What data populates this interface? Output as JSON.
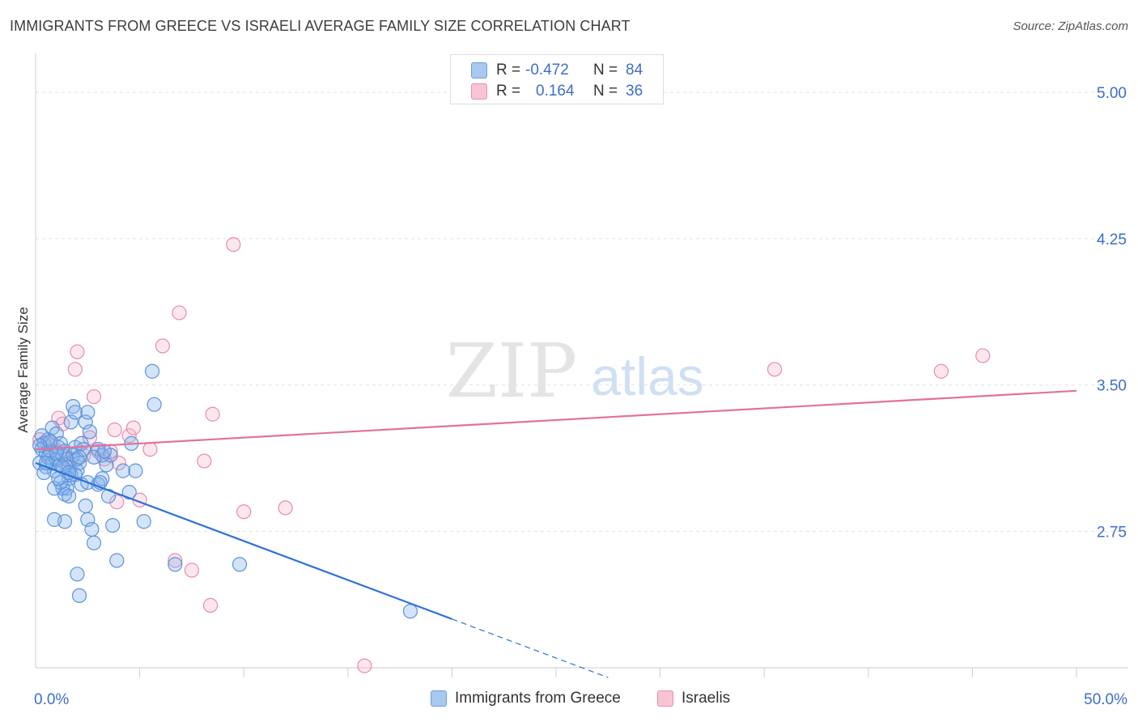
{
  "title": "IMMIGRANTS FROM GREECE VS ISRAELI AVERAGE FAMILY SIZE CORRELATION CHART",
  "source": "Source: ZipAtlas.com",
  "watermark": {
    "zip": "ZIP",
    "atlas": "atlas"
  },
  "stats": [
    {
      "r_label": "R =",
      "r_value": "-0.472",
      "n_label": "N =",
      "n_value": "84",
      "color": "#a9c8f0",
      "border": "#6d9fe0"
    },
    {
      "r_label": "R =",
      "r_value": "0.164",
      "n_label": "N =",
      "n_value": "36",
      "color": "#f8c4d4",
      "border": "#eb8fab"
    }
  ],
  "colors": {
    "blue_fill": "rgba(132,178,236,0.35)",
    "blue_stroke": "#5b93dd",
    "blue_line": "#2b72d6",
    "pink_fill": "rgba(246,176,198,0.30)",
    "pink_stroke": "#e98ca9",
    "pink_line": "#e2729a",
    "tick_text": "#3d6ec9",
    "grid": "#e3e3e3"
  },
  "chart_data": {
    "type": "scatter",
    "xlabel": "",
    "ylabel": "Average Family Size",
    "xlim": [
      0,
      50
    ],
    "ylim": [
      2.05,
      5.15
    ],
    "x_tick_labels": [
      {
        "value": 0,
        "label": "0.0%"
      },
      {
        "value": 50,
        "label": "50.0%"
      }
    ],
    "y_ticks": [
      {
        "value": 5.0,
        "label": "5.00"
      },
      {
        "value": 4.25,
        "label": "4.25"
      },
      {
        "value": 3.5,
        "label": "3.50"
      },
      {
        "value": 2.75,
        "label": "2.75"
      }
    ],
    "legend": [
      "Immigrants from Greece",
      "Israelis"
    ],
    "series": [
      {
        "name": "Immigrants from Greece",
        "points": [
          [
            0.3,
            3.24
          ],
          [
            0.4,
            3.2
          ],
          [
            0.3,
            3.17
          ],
          [
            0.5,
            3.15
          ],
          [
            0.2,
            3.1
          ],
          [
            0.5,
            3.08
          ],
          [
            0.6,
            3.13
          ],
          [
            0.7,
            3.16
          ],
          [
            0.8,
            3.1
          ],
          [
            0.9,
            3.06
          ],
          [
            1.0,
            3.12
          ],
          [
            1.1,
            3.18
          ],
          [
            1.2,
            3.09
          ],
          [
            1.3,
            3.14
          ],
          [
            0.4,
            3.05
          ],
          [
            0.6,
            3.22
          ],
          [
            0.8,
            3.28
          ],
          [
            1.0,
            3.25
          ],
          [
            1.2,
            3.2
          ],
          [
            1.4,
            3.16
          ],
          [
            1.5,
            3.12
          ],
          [
            1.6,
            3.08
          ],
          [
            1.7,
            3.04
          ],
          [
            1.8,
            3.14
          ],
          [
            1.9,
            3.18
          ],
          [
            2.0,
            3.06
          ],
          [
            2.1,
            3.1
          ],
          [
            2.2,
            3.2
          ],
          [
            1.6,
            3.02
          ],
          [
            1.5,
            2.97
          ],
          [
            1.4,
            2.94
          ],
          [
            1.3,
            2.97
          ],
          [
            1.2,
            3.0
          ],
          [
            1.9,
            3.04
          ],
          [
            2.0,
            3.12
          ],
          [
            2.3,
            3.17
          ],
          [
            2.4,
            3.31
          ],
          [
            2.5,
            3.36
          ],
          [
            2.6,
            3.26
          ],
          [
            1.7,
            3.31
          ],
          [
            1.8,
            3.39
          ],
          [
            1.9,
            3.36
          ],
          [
            2.1,
            3.13
          ],
          [
            0.9,
            2.97
          ],
          [
            1.1,
            3.02
          ],
          [
            1.6,
            2.93
          ],
          [
            1.4,
            2.8
          ],
          [
            2.2,
            2.99
          ],
          [
            2.4,
            2.88
          ],
          [
            2.5,
            2.81
          ],
          [
            2.7,
            2.76
          ],
          [
            2.8,
            2.69
          ],
          [
            3.0,
            2.99
          ],
          [
            3.2,
            3.02
          ],
          [
            3.4,
            3.09
          ],
          [
            3.6,
            3.14
          ],
          [
            3.0,
            3.17
          ],
          [
            3.2,
            3.14
          ],
          [
            3.5,
            2.93
          ],
          [
            3.7,
            2.78
          ],
          [
            3.9,
            2.6
          ],
          [
            4.2,
            3.06
          ],
          [
            4.5,
            2.95
          ],
          [
            4.6,
            3.2
          ],
          [
            4.8,
            3.06
          ],
          [
            5.2,
            2.8
          ],
          [
            5.6,
            3.57
          ],
          [
            5.7,
            3.4
          ],
          [
            6.7,
            2.58
          ],
          [
            9.8,
            2.58
          ],
          [
            2.0,
            2.53
          ],
          [
            2.1,
            2.42
          ],
          [
            0.9,
            2.81
          ],
          [
            2.5,
            3.0
          ],
          [
            3.1,
            3.0
          ],
          [
            0.5,
            3.1
          ],
          [
            0.7,
            3.21
          ],
          [
            1.0,
            3.15
          ],
          [
            1.3,
            3.08
          ],
          [
            1.6,
            3.05
          ],
          [
            2.8,
            3.13
          ],
          [
            3.3,
            3.16
          ],
          [
            18.0,
            2.34
          ],
          [
            0.2,
            3.19
          ]
        ],
        "trend_solid": [
          [
            0,
            3.1
          ],
          [
            20,
            2.3
          ]
        ],
        "trend_dashed": [
          [
            20,
            2.3
          ],
          [
            27.5,
            2.0
          ]
        ]
      },
      {
        "name": "Israelis",
        "points": [
          [
            0.2,
            3.22
          ],
          [
            0.4,
            3.2
          ],
          [
            0.6,
            3.18
          ],
          [
            0.8,
            3.2
          ],
          [
            1.0,
            3.16
          ],
          [
            1.1,
            3.33
          ],
          [
            1.3,
            3.3
          ],
          [
            1.5,
            3.1
          ],
          [
            1.7,
            3.12
          ],
          [
            1.9,
            3.58
          ],
          [
            2.0,
            3.67
          ],
          [
            2.3,
            3.14
          ],
          [
            2.6,
            3.23
          ],
          [
            2.8,
            3.44
          ],
          [
            3.0,
            3.16
          ],
          [
            3.3,
            3.12
          ],
          [
            3.6,
            3.16
          ],
          [
            3.8,
            3.27
          ],
          [
            4.0,
            3.1
          ],
          [
            3.9,
            2.9
          ],
          [
            4.5,
            3.24
          ],
          [
            4.7,
            3.28
          ],
          [
            5.0,
            2.91
          ],
          [
            5.5,
            3.17
          ],
          [
            6.1,
            3.7
          ],
          [
            6.9,
            3.87
          ],
          [
            6.7,
            2.6
          ],
          [
            7.5,
            2.55
          ],
          [
            8.1,
            3.11
          ],
          [
            8.4,
            2.37
          ],
          [
            8.5,
            3.35
          ],
          [
            9.5,
            4.22
          ],
          [
            10.0,
            2.85
          ],
          [
            12.0,
            2.87
          ],
          [
            15.8,
            2.06
          ],
          [
            35.5,
            3.58
          ]
        ],
        "extra_points": [
          [
            43.5,
            3.57
          ],
          [
            45.5,
            3.65
          ]
        ],
        "trend_solid": [
          [
            0,
            3.17
          ],
          [
            50,
            3.47
          ]
        ]
      }
    ]
  }
}
